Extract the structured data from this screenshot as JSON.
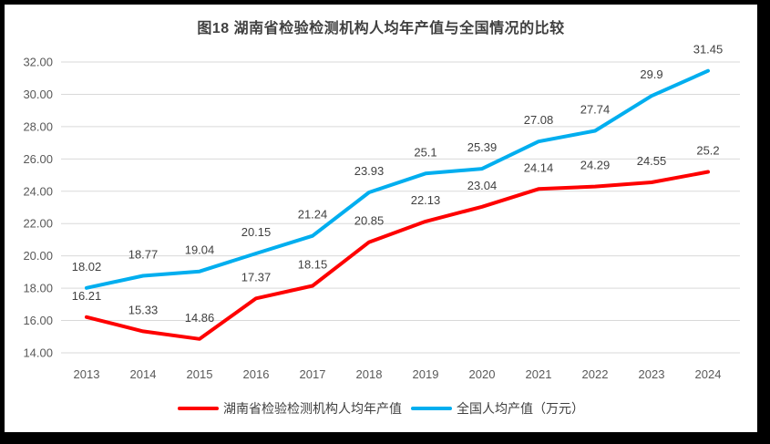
{
  "figure": {
    "title": "图18 湖南省检验检测机构人均年产值与全国情况的比较"
  },
  "chart_data": {
    "type": "line",
    "title": "图18 湖南省检验检测机构人均年产值与全国情况的比较",
    "categories": [
      "2013",
      "2014",
      "2015",
      "2016",
      "2017",
      "2018",
      "2019",
      "2020",
      "2021",
      "2022",
      "2023",
      "2024"
    ],
    "series": [
      {
        "id": "hunan",
        "name": "湖南省检验检测机构人均年产值",
        "color": "#FE0000",
        "values": [
          16.21,
          15.33,
          14.86,
          17.37,
          18.15,
          20.85,
          22.13,
          23.04,
          24.14,
          24.29,
          24.55,
          25.2
        ]
      },
      {
        "id": "national",
        "name": "全国人均产值（万元）",
        "color": "#00AEEF",
        "values": [
          18.02,
          18.77,
          19.04,
          20.15,
          21.24,
          23.93,
          25.1,
          25.39,
          27.08,
          27.74,
          29.9,
          31.45
        ]
      }
    ],
    "ylim": [
      14,
      32
    ],
    "ytick_step": 2,
    "ytick_labels": [
      "14.00",
      "16.00",
      "18.00",
      "20.00",
      "22.00",
      "24.00",
      "26.00",
      "28.00",
      "30.00",
      "32.00"
    ],
    "grid": "horizontal",
    "legend_position": "bottom",
    "data_labels_shown": true,
    "colors": {
      "gridline": "#D9D9D9",
      "tick_label": "#595959",
      "data_label": "#404040",
      "title": "#404040",
      "frame": "#000000",
      "background": "#FFFFFF"
    }
  }
}
